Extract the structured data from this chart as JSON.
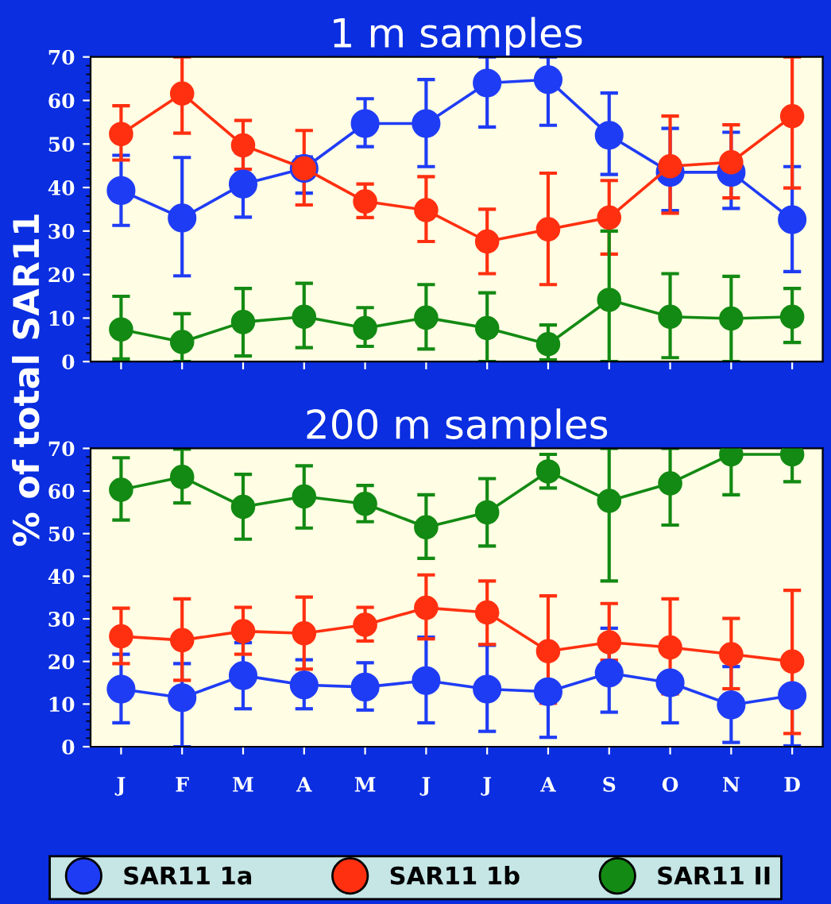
{
  "chart_data": [
    {
      "type": "line",
      "title": "1 m samples",
      "ylabel": "% of total SAR11",
      "categories": [
        null,
        null,
        null,
        null,
        null,
        null,
        null,
        null,
        null,
        null,
        null,
        null
      ],
      "ylim": [
        0,
        70
      ],
      "yticks": [
        0,
        10,
        20,
        30,
        40,
        50,
        60,
        70
      ],
      "tick_labels": "y",
      "marker": "circle",
      "grid": false,
      "legend": "bottom",
      "series": [
        {
          "name": "SAR11 1a",
          "color": "#1f3cf5",
          "values": [
            39.3,
            33,
            40.8,
            44.4,
            54.7,
            54.7,
            64,
            64.8,
            52,
            43.5,
            43.5,
            32.6
          ],
          "errors": [
            [
              31.3,
              47.4
            ],
            [
              19.7,
              46.9
            ],
            [
              33.2,
              48
            ],
            [
              38.7,
              47
            ],
            [
              49.4,
              60.4
            ],
            [
              44.8,
              64.8
            ],
            [
              53.9,
              70
            ],
            [
              54.3,
              70
            ],
            [
              43,
              61.7
            ],
            [
              34.7,
              53.6
            ],
            [
              35.2,
              52.7
            ],
            [
              20.7,
              44.8
            ]
          ]
        },
        {
          "name": "SAR11 1b",
          "color": "#ff3010",
          "values": [
            52.3,
            61.6,
            49.7,
            44.4,
            36.8,
            34.8,
            27.6,
            30.4,
            33.1,
            44.9,
            45.8,
            56.4
          ],
          "errors": [
            [
              46.3,
              58.8
            ],
            [
              52.5,
              70
            ],
            [
              44.2,
              55.4
            ],
            [
              36,
              53.1
            ],
            [
              33.1,
              40.8
            ],
            [
              27.6,
              42.5
            ],
            [
              20.2,
              35
            ],
            [
              17.7,
              43.3
            ],
            [
              24.7,
              41.6
            ],
            [
              34.1,
              56.4
            ],
            [
              37.6,
              54.4
            ],
            [
              39.9,
              70
            ]
          ]
        },
        {
          "name": "SAR11 II",
          "color": "#138a13",
          "values": [
            7.4,
            4.5,
            9.1,
            10.3,
            7.7,
            10.1,
            7.7,
            4,
            14.2,
            10.3,
            9.9,
            10.3
          ],
          "errors": [
            [
              0.6,
              15
            ],
            [
              0,
              11
            ],
            [
              1.3,
              16.8
            ],
            [
              3.2,
              18
            ],
            [
              3.5,
              12.4
            ],
            [
              2.9,
              17.7
            ],
            [
              0,
              15.8
            ],
            [
              0.4,
              8.4
            ],
            [
              0,
              30
            ],
            [
              0.9,
              20.2
            ],
            [
              0,
              19.6
            ],
            [
              4.4,
              16.8
            ]
          ]
        }
      ]
    },
    {
      "type": "line",
      "title": "200 m samples",
      "categories": [
        "J",
        "F",
        "M",
        "A",
        "M",
        "J",
        "J",
        "A",
        "S",
        "O",
        "N",
        "D"
      ],
      "ylim": [
        0,
        70
      ],
      "yticks": [
        0,
        10,
        20,
        30,
        40,
        50,
        60,
        70
      ],
      "marker": "circle",
      "grid": false,
      "series": [
        {
          "color": "#1f3cf5",
          "values": [
            13.5,
            11.5,
            16.7,
            14.5,
            14,
            15.5,
            13.5,
            12.9,
            17.3,
            15,
            9.8,
            12
          ],
          "errors": [
            [
              5.6,
              21.7
            ],
            [
              0,
              19.5
            ],
            [
              8.9,
              24.4
            ],
            [
              8.9,
              20.4
            ],
            [
              8.6,
              19.7
            ],
            [
              5.6,
              25.7
            ],
            [
              3.6,
              23.8
            ],
            [
              2.2,
              12.9
            ],
            [
              8.1,
              27.8
            ],
            [
              5.6,
              15
            ],
            [
              1,
              18.8
            ],
            [
              0.2,
              12
            ]
          ]
        },
        {
          "color": "#ff3010",
          "values": [
            25.9,
            25,
            27.1,
            26.6,
            28.6,
            32.6,
            31.5,
            22.4,
            24.5,
            23.3,
            21.7,
            20
          ],
          "errors": [
            [
              19.5,
              32.5
            ],
            [
              15.6,
              34.7
            ],
            [
              21.7,
              32.7
            ],
            [
              18.2,
              35.1
            ],
            [
              24.8,
              32.7
            ],
            [
              25.3,
              40.3
            ],
            [
              24,
              38.9
            ],
            [
              10.2,
              35.4
            ],
            [
              20.3,
              33.6
            ],
            [
              12.4,
              34.7
            ],
            [
              13.6,
              30.1
            ],
            [
              3.1,
              36.7
            ]
          ]
        },
        {
          "color": "#138a13",
          "values": [
            60.3,
            63.3,
            56.3,
            58.7,
            57,
            51.5,
            55,
            64.6,
            57.7,
            61.8,
            68.6,
            68.6
          ],
          "errors": [
            [
              53.2,
              67.8
            ],
            [
              57.2,
              69.8
            ],
            [
              48.7,
              63.9
            ],
            [
              51.3,
              65.9
            ],
            [
              52.8,
              61.3
            ],
            [
              44.2,
              59.1
            ],
            [
              47.1,
              62.9
            ],
            [
              60.7,
              68.6
            ],
            [
              38.9,
              70
            ],
            [
              52,
              70
            ],
            [
              59.1,
              70
            ],
            [
              62.2,
              70
            ]
          ]
        }
      ]
    }
  ]
}
